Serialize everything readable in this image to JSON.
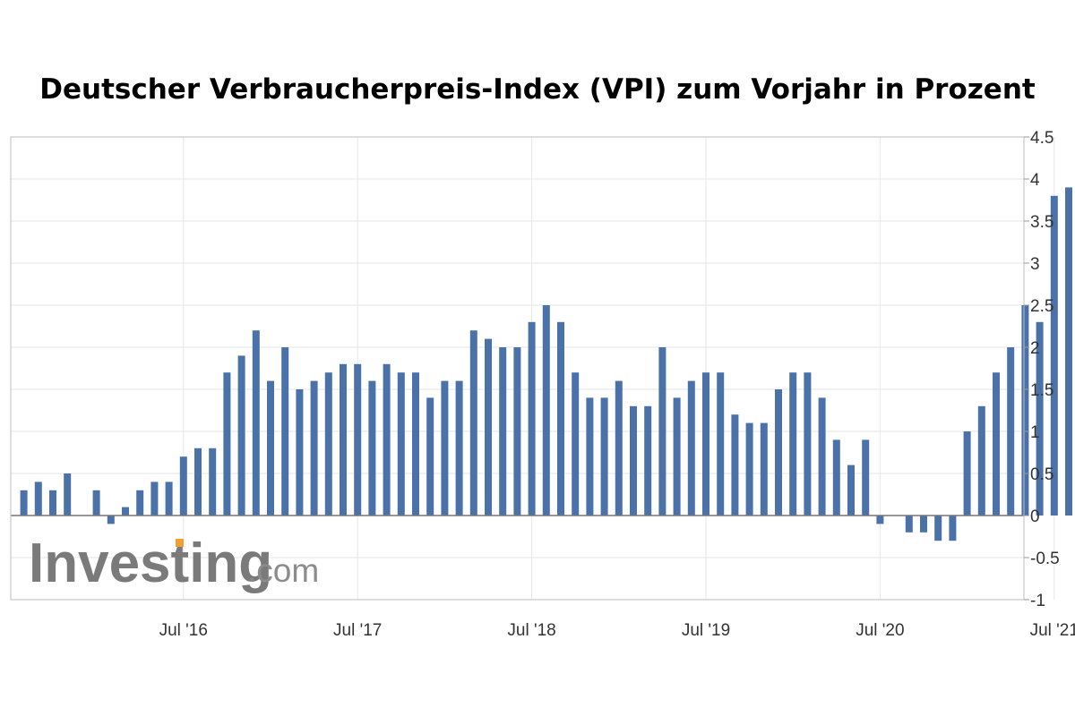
{
  "chart_data": {
    "type": "bar",
    "title": "Deutscher Verbraucherpreis-Index (VPI) zum Vorjahr in Prozent",
    "xlabel": "",
    "ylabel": "",
    "ylim": [
      -1,
      4.5
    ],
    "yticks": [
      "4.5",
      "4",
      "3.5",
      "3",
      "2.5",
      "2",
      "1.5",
      "1",
      "0.5",
      "0",
      "-0.5",
      "-1"
    ],
    "xticks": [
      "Jul '16",
      "Jul '17",
      "Jul '18",
      "Jul '19",
      "Jul '20",
      "Jul '21"
    ],
    "grid": true,
    "bar_color": "#4a72a8",
    "categories": [
      "2015-08",
      "2015-09",
      "2015-10",
      "2015-11",
      "2015-12",
      "2016-01",
      "2016-02",
      "2016-03",
      "2016-04",
      "2016-05",
      "2016-06",
      "2016-07",
      "2016-08",
      "2016-09",
      "2016-10",
      "2016-11",
      "2016-12",
      "2017-01",
      "2017-02",
      "2017-03",
      "2017-04",
      "2017-05",
      "2017-06",
      "2017-07",
      "2017-08",
      "2017-09",
      "2017-10",
      "2017-11",
      "2017-12",
      "2018-01",
      "2018-02",
      "2018-03",
      "2018-04",
      "2018-05",
      "2018-06",
      "2018-07",
      "2018-08",
      "2018-09",
      "2018-10",
      "2018-11",
      "2018-12",
      "2019-01",
      "2019-02",
      "2019-03",
      "2019-04",
      "2019-05",
      "2019-06",
      "2019-07",
      "2019-08",
      "2019-09",
      "2019-10",
      "2019-11",
      "2019-12",
      "2020-01",
      "2020-02",
      "2020-03",
      "2020-04",
      "2020-05",
      "2020-06",
      "2020-07",
      "2020-08",
      "2020-09",
      "2020-10",
      "2020-11",
      "2020-12",
      "2021-01",
      "2021-02",
      "2021-03",
      "2021-04",
      "2021-05",
      "2021-06",
      "2021-07",
      "2021-08"
    ],
    "values": [
      0.3,
      0.4,
      0.3,
      0.5,
      0.0,
      0.3,
      -0.1,
      0.1,
      0.3,
      0.4,
      0.4,
      0.7,
      0.8,
      0.8,
      1.7,
      1.9,
      2.2,
      1.6,
      2.0,
      1.5,
      1.6,
      1.7,
      1.8,
      1.8,
      1.6,
      1.8,
      1.7,
      1.7,
      1.4,
      1.6,
      1.6,
      2.2,
      2.1,
      2.0,
      2.0,
      2.3,
      2.5,
      2.3,
      1.7,
      1.4,
      1.4,
      1.6,
      1.3,
      1.3,
      2.0,
      1.4,
      1.6,
      1.7,
      1.7,
      1.2,
      1.1,
      1.1,
      1.5,
      1.7,
      1.7,
      1.4,
      0.9,
      0.6,
      0.9,
      -0.1,
      0.0,
      -0.2,
      -0.2,
      -0.3,
      -0.3,
      1.0,
      1.3,
      1.7,
      2.0,
      2.5,
      2.3,
      3.8,
      3.9
    ]
  },
  "watermark": {
    "brand": "Investing",
    "suffix": ".com",
    "accent": "#f0a030"
  }
}
